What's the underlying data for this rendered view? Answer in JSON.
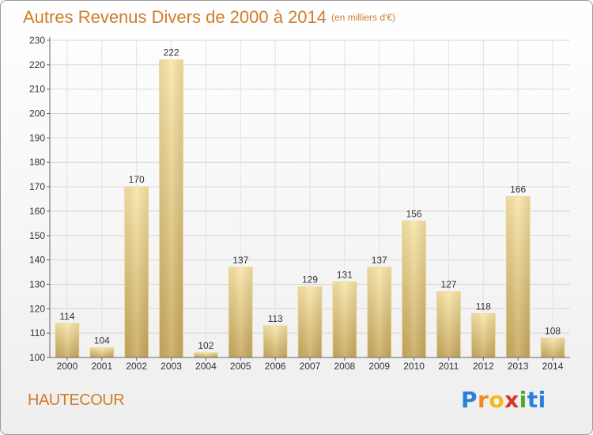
{
  "title": "Autres Revenus Divers de 2000 à 2014",
  "title_unit": "(en milliers d'€)",
  "place": "HAUTECOUR",
  "brand": {
    "letters": [
      "P",
      "r",
      "o",
      "x",
      "i",
      "ti"
    ]
  },
  "colors": {
    "title": "#d07c2c",
    "bar_light": "#f7e1a1",
    "bar_dark": "#c8a75c",
    "axis": "#666666"
  },
  "chart_data": {
    "type": "bar",
    "title": "Autres Revenus Divers de 2000 à 2014",
    "categories": [
      "2000",
      "2001",
      "2002",
      "2003",
      "2004",
      "2005",
      "2006",
      "2007",
      "2008",
      "2009",
      "2010",
      "2011",
      "2012",
      "2013",
      "2014"
    ],
    "values": [
      114,
      104,
      170,
      222,
      102,
      137,
      113,
      129,
      131,
      137,
      156,
      127,
      118,
      166,
      108
    ],
    "ylim": [
      100,
      230
    ],
    "yticks": [
      100,
      110,
      120,
      130,
      140,
      150,
      160,
      170,
      180,
      190,
      200,
      210,
      220,
      230
    ],
    "xlabel": "",
    "ylabel": "",
    "grid": true,
    "data_labels": true
  }
}
